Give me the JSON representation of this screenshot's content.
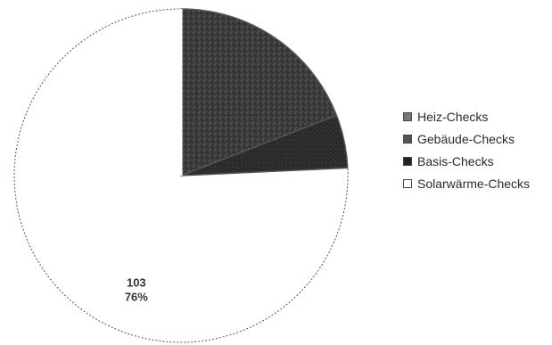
{
  "chart_data": {
    "type": "pie",
    "title": "",
    "categories": [
      "Heiz-Checks",
      "Gebäude-Checks",
      "Basis-Checks",
      "Solarwärme-Checks"
    ],
    "values": [
      0,
      26,
      7,
      103
    ],
    "percentages": [
      0,
      19,
      5,
      76
    ],
    "data_labels": [
      {
        "category": "Basis-Checks",
        "value": "7",
        "percent": "5%"
      },
      {
        "category": "Solarwärme-Checks",
        "value": "103",
        "percent": "76%"
      }
    ],
    "colors": [
      "#5a5a5a",
      "#3e3e3e",
      "#2c2c2c",
      "#ffffff"
    ],
    "legend_position": "right"
  }
}
